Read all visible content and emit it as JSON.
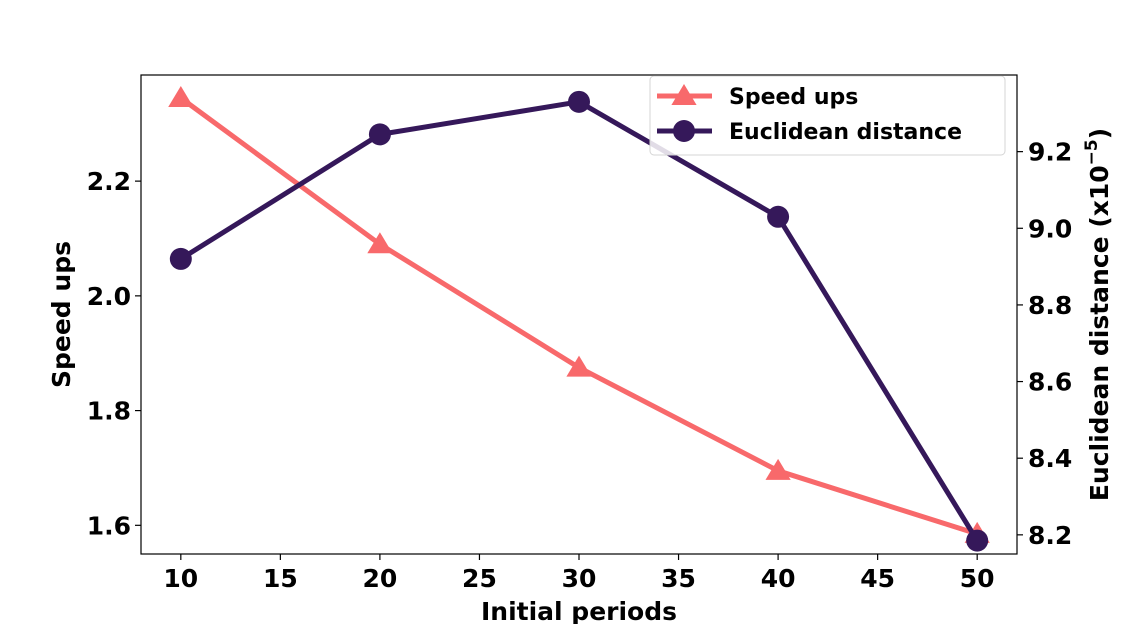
{
  "chart_data": {
    "type": "line",
    "xlabel": "Initial periods",
    "ylabel_left": "Speed ups",
    "ylabel_right": "Euclidean distance (x10",
    "ylabel_right_exp": "−5",
    "ylabel_right_close": ")",
    "x": [
      10,
      20,
      30,
      40,
      50
    ],
    "xlim": [
      8,
      52
    ],
    "xticks": [
      10,
      15,
      20,
      25,
      30,
      35,
      40,
      45,
      50
    ],
    "ylim_left": [
      1.55,
      2.385
    ],
    "yticks_left": [
      1.6,
      1.8,
      2.0,
      2.2
    ],
    "ylim_right": [
      8.15,
      9.4
    ],
    "yticks_right": [
      8.2,
      8.4,
      8.6,
      8.8,
      9.0,
      9.2
    ],
    "series": [
      {
        "name": "Speed ups",
        "axis": "left",
        "marker": "triangle",
        "color": "#f8696b",
        "values": [
          2.345,
          2.09,
          1.875,
          1.695,
          1.585
        ]
      },
      {
        "name": "Euclidean distance",
        "axis": "right",
        "marker": "circle",
        "color": "#35185a",
        "values": [
          8.92,
          9.245,
          9.33,
          9.03,
          8.185
        ]
      }
    ],
    "legend_position": "top-right",
    "grid": false
  }
}
